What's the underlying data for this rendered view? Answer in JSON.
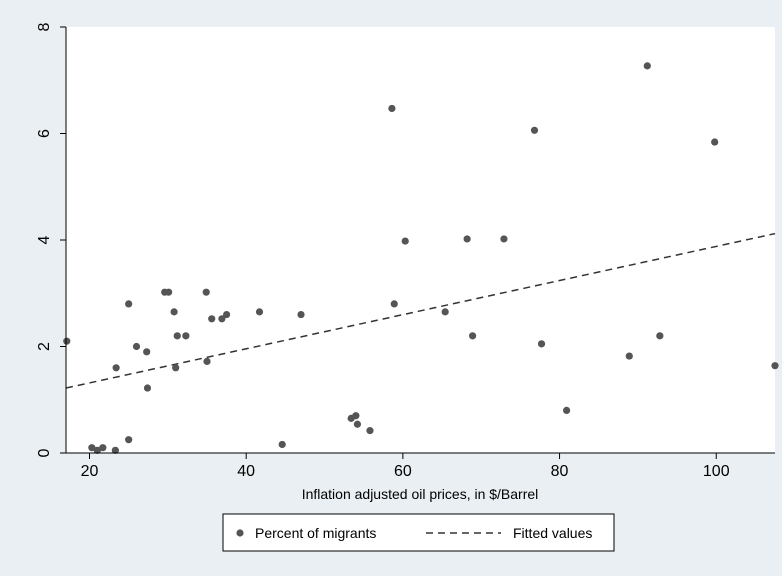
{
  "chart_data": {
    "type": "scatter",
    "title": "",
    "xlabel": "Inflation adjusted oil prices, in $/Barrel",
    "ylabel": "",
    "xlim": [
      17,
      107.5
    ],
    "ylim": [
      0,
      8
    ],
    "x_ticks": [
      20,
      40,
      60,
      80,
      100
    ],
    "y_ticks": [
      0,
      2,
      4,
      6,
      8
    ],
    "grid": false,
    "legend_position": "bottom",
    "colors": {
      "background": "#eaeff3",
      "plot_area": "#ffffff",
      "points": "#555555",
      "fit_line": "#333333"
    },
    "series": [
      {
        "name": "Percent of migrants",
        "kind": "scatter",
        "points": [
          [
            17.1,
            2.1
          ],
          [
            20.3,
            0.1
          ],
          [
            21.0,
            0.05
          ],
          [
            21.7,
            0.1
          ],
          [
            23.3,
            0.05
          ],
          [
            23.4,
            1.6
          ],
          [
            25.0,
            2.8
          ],
          [
            25.0,
            0.25
          ],
          [
            26.0,
            2.0
          ],
          [
            27.3,
            1.9
          ],
          [
            27.4,
            1.22
          ],
          [
            29.6,
            3.02
          ],
          [
            30.1,
            3.02
          ],
          [
            30.8,
            2.65
          ],
          [
            31.0,
            1.6
          ],
          [
            31.2,
            2.2
          ],
          [
            32.3,
            2.2
          ],
          [
            34.9,
            3.02
          ],
          [
            35.0,
            1.72
          ],
          [
            35.6,
            2.52
          ],
          [
            36.9,
            2.52
          ],
          [
            37.5,
            2.6
          ],
          [
            41.7,
            2.65
          ],
          [
            44.6,
            0.16
          ],
          [
            47.0,
            2.6
          ],
          [
            53.4,
            0.65
          ],
          [
            54.0,
            0.7
          ],
          [
            54.2,
            0.54
          ],
          [
            55.8,
            0.42
          ],
          [
            58.6,
            6.47
          ],
          [
            58.9,
            2.8
          ],
          [
            60.3,
            3.98
          ],
          [
            65.4,
            2.65
          ],
          [
            68.2,
            4.02
          ],
          [
            68.9,
            2.2
          ],
          [
            72.9,
            4.02
          ],
          [
            76.8,
            6.06
          ],
          [
            77.7,
            2.05
          ],
          [
            80.9,
            0.8
          ],
          [
            88.9,
            1.82
          ],
          [
            91.2,
            7.27
          ],
          [
            92.8,
            2.2
          ],
          [
            99.8,
            5.84
          ],
          [
            107.5,
            1.64
          ]
        ]
      },
      {
        "name": "Fitted values",
        "kind": "line",
        "style": "dashed",
        "points": [
          [
            17,
            1.22
          ],
          [
            107.5,
            4.12
          ]
        ]
      }
    ]
  }
}
